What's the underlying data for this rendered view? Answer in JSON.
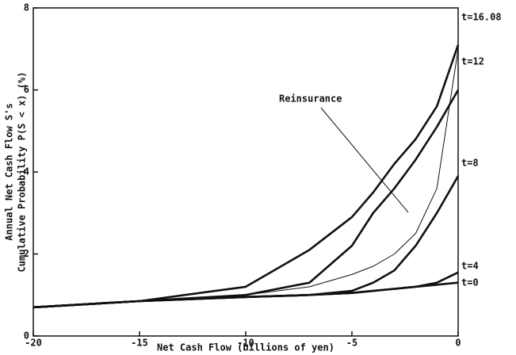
{
  "chart_data": {
    "type": "line",
    "xlabel": "Net Cash Flow  (billions of yen)",
    "ylabel": [
      "Annual Net Cash Flow S's",
      "Cumulative Probability P(S < x) (%)"
    ],
    "x": [
      -20,
      -15,
      -10,
      -7,
      -5,
      -4,
      -3,
      -2,
      -1,
      0
    ],
    "series": [
      {
        "name": "t=16.08",
        "color": "#111111",
        "width": 2.6,
        "values": [
          0.7,
          0.85,
          1.2,
          2.1,
          2.9,
          3.5,
          4.2,
          4.8,
          5.6,
          7.1
        ]
      },
      {
        "name": "t=12",
        "color": "#111111",
        "width": 2.6,
        "values": [
          0.7,
          0.85,
          1.0,
          1.3,
          2.2,
          3.0,
          3.6,
          4.3,
          5.1,
          6.0
        ]
      },
      {
        "name": "t=8",
        "color": "#111111",
        "width": 2.6,
        "values": [
          0.7,
          0.85,
          0.95,
          1.0,
          1.1,
          1.3,
          1.6,
          2.2,
          3.0,
          3.9
        ]
      },
      {
        "name": "t=4",
        "color": "#111111",
        "width": 2.6,
        "values": [
          0.7,
          0.85,
          0.95,
          1.0,
          1.05,
          1.1,
          1.15,
          1.2,
          1.3,
          1.55
        ]
      },
      {
        "name": "t=0",
        "color": "#111111",
        "width": 2.6,
        "values": [
          0.7,
          0.85,
          0.95,
          1.0,
          1.05,
          1.1,
          1.15,
          1.2,
          1.25,
          1.3
        ]
      },
      {
        "name": "Reinsurance",
        "color": "#111111",
        "width": 1,
        "values": [
          0.7,
          0.85,
          1.0,
          1.2,
          1.5,
          1.7,
          2.0,
          2.5,
          3.6,
          7.0
        ]
      }
    ],
    "xlim": [
      -20,
      0
    ],
    "xticks": [
      -20,
      -15,
      -10,
      -5,
      0
    ],
    "ylim": [
      0,
      8
    ],
    "yticks": [
      0,
      2,
      4,
      6,
      8
    ]
  }
}
